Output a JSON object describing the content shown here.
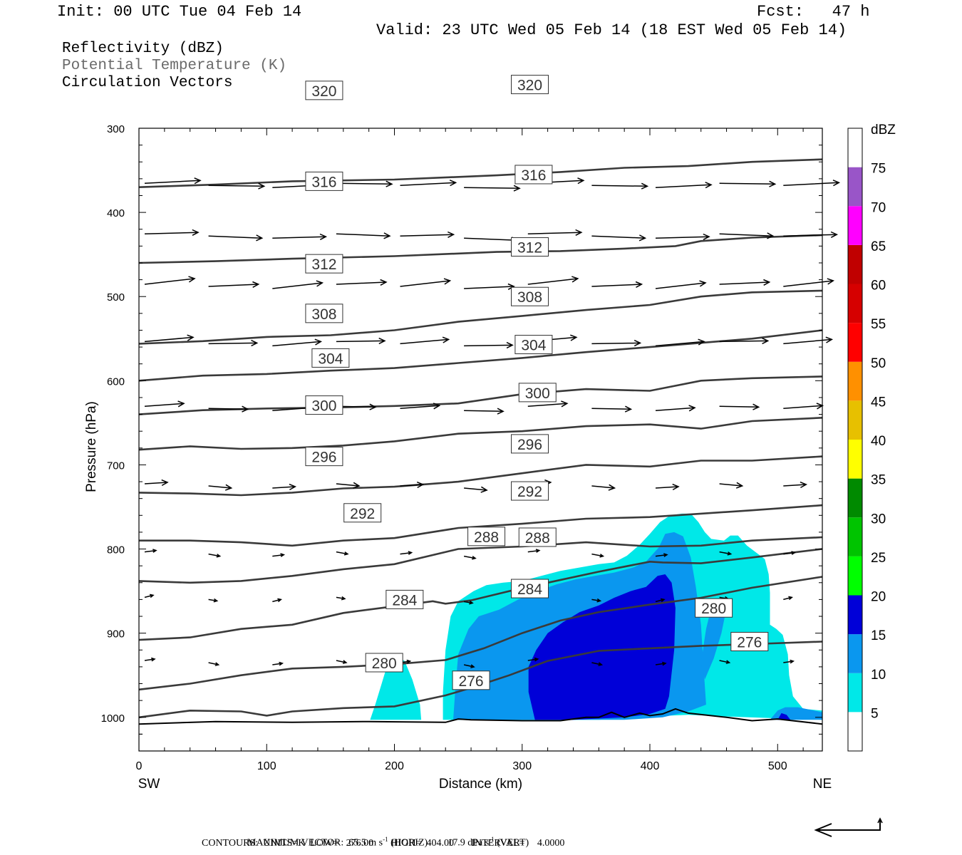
{
  "header": {
    "init": "Init: 00 UTC Tue 04 Feb 14",
    "fcst": "Fcst:   47 h",
    "valid": "Valid: 23 UTC Wed 05 Feb 14 (18 EST Wed 05 Feb 14)"
  },
  "fields": {
    "reflectivity": "Reflectivity (dBZ)",
    "theta": "Potential Temperature (K)",
    "vectors": "Circulation Vectors"
  },
  "colors": {
    "theta_line": "#3a3a3a",
    "ground": "#000000"
  },
  "chart_data": {
    "type": "cross-section",
    "xlabel": "Distance (km)",
    "ylabel": "Pressure (hPa)",
    "xlim": [
      0,
      535
    ],
    "ylim": [
      300,
      1040
    ],
    "y_inverted": true,
    "x_ticks": [
      0,
      100,
      200,
      300,
      400,
      500
    ],
    "y_ticks": [
      300,
      400,
      500,
      600,
      700,
      800,
      900,
      1000
    ],
    "x_ends": {
      "left": "SW",
      "right": "NE"
    },
    "colorbar": {
      "unit": "dBZ",
      "levels": [
        5,
        10,
        15,
        20,
        25,
        30,
        35,
        40,
        45,
        50,
        55,
        60,
        65,
        70,
        75
      ],
      "colors": [
        "#ffffff",
        "#00e8e8",
        "#0a97ef",
        "#0000d8",
        "#00ff00",
        "#00c400",
        "#008a00",
        "#ffff00",
        "#e7c000",
        "#ff9000",
        "#ff0000",
        "#d60000",
        "#c00000",
        "#ff00ff",
        "#9955c8",
        "#ffffff"
      ]
    },
    "reflectivity": [
      {
        "dbz": 5,
        "polygons": [
          [
            [
              181,
              1003
            ],
            [
              185,
              985
            ],
            [
              190,
              960
            ],
            [
              195,
              935
            ],
            [
              201,
              927
            ],
            [
              208,
              933
            ],
            [
              214,
              955
            ],
            [
              220,
              985
            ],
            [
              221,
              1003
            ]
          ],
          [
            [
              238,
              1003
            ],
            [
              238,
              970
            ],
            [
              240,
              920
            ],
            [
              244,
              880
            ],
            [
              250,
              862
            ],
            [
              262,
              850
            ],
            [
              272,
              843
            ],
            [
              285,
              840
            ],
            [
              300,
              838
            ],
            [
              315,
              832
            ],
            [
              330,
              826
            ],
            [
              345,
              822
            ],
            [
              360,
              818
            ],
            [
              372,
              816
            ],
            [
              382,
              808
            ],
            [
              392,
              795
            ],
            [
              400,
              782
            ],
            [
              408,
              768
            ],
            [
              416,
              760
            ],
            [
              425,
              758
            ],
            [
              432,
              758
            ],
            [
              438,
              768
            ],
            [
              443,
              780
            ],
            [
              448,
              788
            ],
            [
              458,
              790
            ],
            [
              463,
              784
            ],
            [
              469,
              784
            ],
            [
              476,
              796
            ],
            [
              483,
              804
            ],
            [
              490,
              812
            ],
            [
              493,
              830
            ],
            [
              494,
              852
            ],
            [
              494,
              890
            ],
            [
              499,
              895
            ],
            [
              504,
              902
            ],
            [
              508,
              925
            ],
            [
              509,
              950
            ],
            [
              512,
              975
            ],
            [
              520,
              990
            ],
            [
              535,
              992
            ],
            [
              535,
              1003
            ],
            [
              460,
              999
            ],
            [
              430,
              997
            ],
            [
              400,
              999
            ],
            [
              360,
              1003
            ],
            [
              300,
              1003
            ]
          ]
        ]
      },
      {
        "dbz": 10,
        "polygons": [
          [
            [
              246,
              1003
            ],
            [
              248,
              960
            ],
            [
              250,
              925
            ],
            [
              258,
              895
            ],
            [
              266,
              880
            ],
            [
              282,
              872
            ],
            [
              297,
              860
            ],
            [
              312,
              850
            ],
            [
              327,
              842
            ],
            [
              342,
              836
            ],
            [
              357,
              832
            ],
            [
              372,
              828
            ],
            [
              387,
              822
            ],
            [
              397,
              815
            ],
            [
              407,
              798
            ],
            [
              412,
              782
            ],
            [
              419,
              780
            ],
            [
              426,
              785
            ],
            [
              432,
              810
            ],
            [
              436,
              845
            ],
            [
              440,
              890
            ],
            [
              442,
              940
            ],
            [
              444,
              985
            ],
            [
              430,
              993
            ],
            [
              410,
              1000
            ],
            [
              380,
              1003
            ],
            [
              300,
              1003
            ]
          ],
          [
            [
              440,
              935
            ],
            [
              444,
              895
            ],
            [
              448,
              870
            ],
            [
              456,
              860
            ],
            [
              460,
              870
            ],
            [
              456,
              900
            ],
            [
              450,
              930
            ],
            [
              443,
              955
            ]
          ],
          [
            [
              494,
              1003
            ],
            [
              500,
              992
            ],
            [
              506,
              988
            ],
            [
              516,
              988
            ],
            [
              535,
              994
            ],
            [
              535,
              1003
            ]
          ]
        ]
      },
      {
        "dbz": 15,
        "polygons": [
          [
            [
              310,
              1003
            ],
            [
              305,
              970
            ],
            [
              305,
              940
            ],
            [
              311,
              920
            ],
            [
              320,
              900
            ],
            [
              332,
              887
            ],
            [
              345,
              875
            ],
            [
              360,
              867
            ],
            [
              372,
              858
            ],
            [
              385,
              850
            ],
            [
              397,
              845
            ],
            [
              406,
              832
            ],
            [
              412,
              830
            ],
            [
              417,
              840
            ],
            [
              420,
              870
            ],
            [
              419,
              920
            ],
            [
              415,
              975
            ],
            [
              412,
              990
            ],
            [
              400,
              996
            ],
            [
              380,
              1000
            ],
            [
              340,
              1003
            ]
          ],
          [
            [
              500,
              1003
            ],
            [
              503,
              995
            ],
            [
              507,
              997
            ],
            [
              510,
              1003
            ]
          ]
        ]
      }
    ],
    "isentropes": [
      {
        "theta": 276,
        "label_at": [
          [
            260,
            956
          ],
          [
            478,
            910
          ]
        ]
      },
      {
        "theta": 280,
        "label_at": [
          [
            192,
            935
          ],
          [
            450,
            870
          ]
        ]
      },
      {
        "theta": 284,
        "label_at": [
          [
            208,
            860
          ],
          [
            306,
            847
          ]
        ]
      },
      {
        "theta": 288,
        "label_at": [
          [
            272,
            785
          ],
          [
            312,
            786
          ]
        ]
      },
      {
        "theta": 292,
        "label_at": [
          [
            175,
            757
          ],
          [
            306,
            731
          ]
        ]
      },
      {
        "theta": 296,
        "label_at": [
          [
            145,
            690
          ],
          [
            306,
            675
          ]
        ]
      },
      {
        "theta": 300,
        "label_at": [
          [
            145,
            629
          ],
          [
            312,
            614
          ]
        ]
      },
      {
        "theta": 304,
        "label_at": [
          [
            150,
            573
          ],
          [
            309,
            557
          ]
        ]
      },
      {
        "theta": 308,
        "label_at": [
          [
            145,
            520
          ],
          [
            306,
            500
          ]
        ]
      },
      {
        "theta": 312,
        "label_at": [
          [
            145,
            461
          ],
          [
            306,
            441
          ]
        ]
      },
      {
        "theta": 316,
        "label_at": [
          [
            145,
            363
          ],
          [
            309,
            355
          ]
        ]
      },
      {
        "theta": 320,
        "label_at": [
          [
            145,
            255
          ],
          [
            306,
            248
          ]
        ]
      }
    ],
    "footer": {
      "max_vector_label": "MAXIMUM VECTOR:",
      "max_horiz": "65.5 m s",
      "horiz_unit": " (HORIZ)",
      "max_vert": "17.9 dPa s",
      "vert_unit": " (VERT)",
      "exponent": "-1",
      "contours": "CONTOURS:  UNITS=K  LOW=   276.00       HIGH=  404.00       INTERVAL=     4.0000"
    }
  }
}
